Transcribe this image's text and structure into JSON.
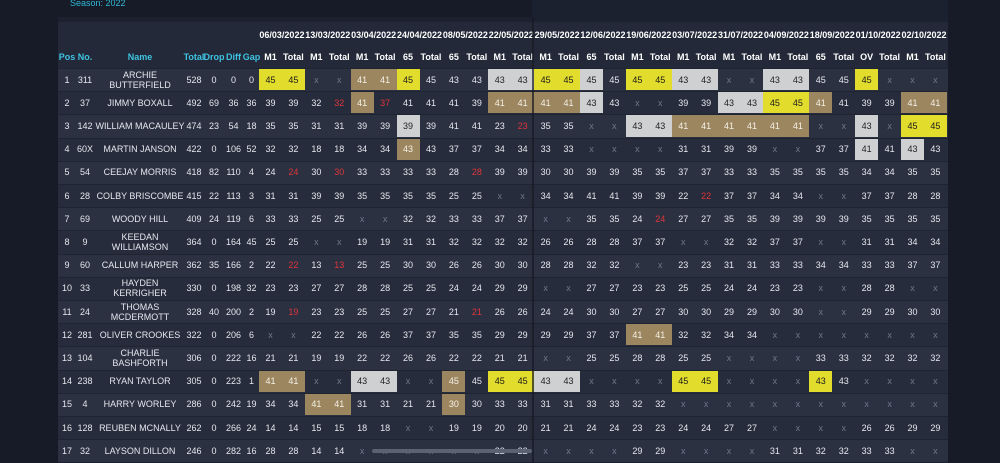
{
  "header": {
    "season": "Season: 2022"
  },
  "table": {
    "columns": [
      "Pos",
      "No.",
      "Name",
      "Total",
      "Drop",
      "Diff",
      "Gap"
    ],
    "events": [
      {
        "date": "06/03/2022",
        "cols": [
          "M1",
          "Total"
        ]
      },
      {
        "date": "13/03/2022",
        "cols": [
          "M1",
          "Total"
        ]
      },
      {
        "date": "03/04/2022",
        "cols": [
          "M1",
          "Total"
        ]
      },
      {
        "date": "24/04/2022",
        "cols": [
          "65",
          "Total"
        ]
      },
      {
        "date": "08/05/2022",
        "cols": [
          "65",
          "Total"
        ]
      },
      {
        "date": "22/05/2022",
        "cols": [
          "M1",
          "Total"
        ]
      },
      {
        "date": "29/05/2022",
        "cols": [
          "M1",
          "Total"
        ]
      },
      {
        "date": "12/06/2022",
        "cols": [
          "65",
          "Total"
        ]
      },
      {
        "date": "19/06/2022",
        "cols": [
          "M1",
          "Total"
        ]
      },
      {
        "date": "03/07/2022",
        "cols": [
          "M1",
          "Total"
        ]
      },
      {
        "date": "31/07/2022",
        "cols": [
          "M1",
          "Total"
        ]
      },
      {
        "date": "04/09/2022",
        "cols": [
          "M1",
          "Total"
        ]
      },
      {
        "date": "18/09/2022",
        "cols": [
          "65",
          "Total"
        ]
      },
      {
        "date": "01/10/2022",
        "cols": [
          "OV",
          "Total"
        ]
      },
      {
        "date": "02/10/2022",
        "cols": [
          "M1",
          "Total"
        ]
      }
    ],
    "rows": [
      {
        "info": [
          1,
          311,
          "ARCHIE BUTTERFIELD",
          528,
          0,
          0,
          0
        ],
        "scores": [
          45,
          45,
          "x",
          "x",
          41,
          41,
          45,
          45,
          43,
          43,
          43,
          43,
          45,
          45,
          45,
          45,
          45,
          45,
          43,
          43,
          "x",
          "x",
          43,
          43,
          45,
          45,
          45,
          "x",
          "x",
          "x"
        ],
        "style": "yy..bby...wwyyw.yyww..ww..y..."
      },
      {
        "info": [
          2,
          37,
          "JIMMY BOXALL",
          492,
          69,
          36,
          36
        ],
        "scores": [
          39,
          39,
          32,
          32,
          41,
          37,
          41,
          41,
          41,
          39,
          41,
          41,
          41,
          41,
          43,
          43,
          "x",
          "x",
          39,
          39,
          43,
          43,
          45,
          45,
          41,
          41,
          39,
          39,
          41,
          41
        ],
        "style": "...rbr....bbbbw.....wwyyb...bb"
      },
      {
        "info": [
          3,
          142,
          "WILLIAM MACAULEY",
          474,
          23,
          54,
          18
        ],
        "scores": [
          35,
          35,
          31,
          31,
          39,
          39,
          39,
          39,
          41,
          41,
          23,
          23,
          35,
          35,
          "x",
          "x",
          43,
          43,
          41,
          41,
          41,
          41,
          41,
          41,
          "x",
          "x",
          43,
          "x",
          45,
          45
        ],
        "style": "......w....r....wwbbbbbb..w.yy"
      },
      {
        "info": [
          4,
          "60X",
          "MARTIN JANSON",
          422,
          0,
          106,
          52
        ],
        "scores": [
          32,
          32,
          18,
          18,
          34,
          34,
          43,
          43,
          37,
          37,
          34,
          34,
          33,
          33,
          "x",
          "x",
          "x",
          "x",
          31,
          31,
          39,
          39,
          "x",
          "x",
          37,
          37,
          41,
          41,
          43,
          43
        ],
        "style": "......b...................w.w."
      },
      {
        "info": [
          5,
          54,
          "CEEJAY MORRIS",
          418,
          82,
          110,
          4
        ],
        "scores": [
          24,
          24,
          30,
          30,
          33,
          33,
          33,
          33,
          28,
          28,
          39,
          39,
          30,
          30,
          39,
          39,
          35,
          35,
          37,
          37,
          33,
          33,
          35,
          35,
          35,
          35,
          34,
          34,
          35,
          35
        ],
        "style": ".r.r.....r...................."
      },
      {
        "info": [
          6,
          28,
          "COLBY BRISCOMBE",
          415,
          22,
          113,
          3
        ],
        "scores": [
          31,
          31,
          39,
          39,
          35,
          35,
          35,
          35,
          25,
          25,
          "x",
          "x",
          34,
          34,
          41,
          41,
          39,
          39,
          22,
          22,
          37,
          37,
          34,
          34,
          "x",
          "x",
          37,
          37,
          28,
          28
        ],
        "style": "...................r.........."
      },
      {
        "info": [
          7,
          69,
          "WOODY HILL",
          409,
          24,
          119,
          6
        ],
        "scores": [
          33,
          33,
          25,
          25,
          "x",
          "x",
          32,
          32,
          33,
          33,
          37,
          37,
          "x",
          "x",
          35,
          35,
          24,
          24,
          27,
          27,
          35,
          35,
          39,
          39,
          39,
          39,
          35,
          35,
          35,
          35
        ],
        "style": ".................r............"
      },
      {
        "info": [
          8,
          9,
          "KEEDAN WILLIAMSON",
          364,
          0,
          164,
          45
        ],
        "scores": [
          25,
          25,
          "x",
          "x",
          19,
          19,
          31,
          31,
          32,
          32,
          32,
          32,
          26,
          26,
          28,
          28,
          37,
          37,
          "x",
          "x",
          32,
          32,
          37,
          37,
          "x",
          "x",
          31,
          31,
          34,
          34
        ],
        "style": ".............................."
      },
      {
        "info": [
          9,
          60,
          "CALLUM HARPER",
          362,
          35,
          166,
          2
        ],
        "scores": [
          22,
          22,
          13,
          13,
          25,
          25,
          30,
          30,
          26,
          26,
          30,
          30,
          28,
          28,
          32,
          32,
          "x",
          "x",
          23,
          23,
          31,
          31,
          33,
          33,
          34,
          34,
          33,
          33,
          37,
          37
        ],
        "style": ".r.r.........................."
      },
      {
        "info": [
          10,
          33,
          "HAYDEN KERRIGHER",
          330,
          0,
          198,
          32
        ],
        "scores": [
          23,
          23,
          27,
          27,
          28,
          28,
          25,
          25,
          24,
          24,
          29,
          29,
          "x",
          "x",
          27,
          27,
          23,
          23,
          25,
          25,
          24,
          24,
          23,
          23,
          "x",
          "x",
          28,
          28,
          "x",
          "x"
        ],
        "style": ".............................."
      },
      {
        "info": [
          11,
          24,
          "THOMAS MCDERMOTT",
          328,
          40,
          200,
          2
        ],
        "scores": [
          19,
          19,
          23,
          23,
          25,
          25,
          27,
          27,
          21,
          21,
          26,
          26,
          24,
          24,
          30,
          30,
          27,
          27,
          30,
          30,
          29,
          29,
          30,
          30,
          "x",
          "x",
          29,
          29,
          30,
          30
        ],
        "style": ".r.......r...................."
      },
      {
        "info": [
          12,
          281,
          "OLIVER CROOKES",
          322,
          0,
          206,
          6
        ],
        "scores": [
          "x",
          "x",
          22,
          22,
          26,
          26,
          37,
          37,
          35,
          35,
          29,
          29,
          29,
          29,
          37,
          37,
          41,
          41,
          32,
          32,
          34,
          34,
          "x",
          "x",
          "x",
          "x",
          "x",
          "x",
          "x",
          "x"
        ],
        "style": "................bb............"
      },
      {
        "info": [
          13,
          104,
          "CHARLIE BASHFORTH",
          306,
          0,
          222,
          16
        ],
        "scores": [
          21,
          21,
          19,
          19,
          22,
          22,
          26,
          26,
          22,
          22,
          21,
          21,
          "x",
          "x",
          25,
          25,
          28,
          28,
          25,
          25,
          "x",
          "x",
          "x",
          "x",
          33,
          33,
          32,
          32,
          32,
          32
        ],
        "style": ".............................."
      },
      {
        "info": [
          14,
          238,
          "RYAN TAYLOR",
          305,
          0,
          223,
          1
        ],
        "scores": [
          41,
          41,
          "x",
          "x",
          43,
          43,
          "x",
          "x",
          45,
          45,
          45,
          45,
          43,
          43,
          "x",
          "x",
          "x",
          "x",
          45,
          45,
          "x",
          "x",
          "x",
          "x",
          43,
          43,
          "x",
          "x",
          "x",
          "x"
        ],
        "style": "bb..ww..b.yyww....yy....y....."
      },
      {
        "info": [
          15,
          4,
          "HARRY WORLEY",
          286,
          0,
          242,
          19
        ],
        "scores": [
          34,
          34,
          41,
          41,
          31,
          31,
          21,
          21,
          30,
          30,
          33,
          33,
          31,
          31,
          33,
          33,
          32,
          32,
          "x",
          "x",
          "x",
          "x",
          "x",
          "x",
          "x",
          "x",
          "x",
          "x",
          "x",
          "x"
        ],
        "style": "..bb....b....................."
      },
      {
        "info": [
          16,
          128,
          "REUBEN MCNALLY",
          262,
          0,
          266,
          24
        ],
        "scores": [
          14,
          14,
          15,
          15,
          18,
          18,
          "x",
          "x",
          19,
          19,
          20,
          20,
          21,
          21,
          24,
          24,
          23,
          23,
          24,
          24,
          27,
          27,
          "x",
          "x",
          "x",
          "x",
          26,
          26,
          29,
          29
        ],
        "style": ".............................."
      },
      {
        "info": [
          17,
          32,
          "LAYSON DILLON",
          246,
          0,
          282,
          16
        ],
        "scores": [
          28,
          28,
          14,
          14,
          "x",
          "x",
          "x",
          "x",
          "x",
          "x",
          22,
          22,
          "x",
          "x",
          "x",
          "x",
          29,
          29,
          "x",
          "x",
          "x",
          "x",
          31,
          31,
          32,
          32,
          33,
          33,
          "x",
          "x"
        ],
        "style": ".............................."
      }
    ]
  }
}
